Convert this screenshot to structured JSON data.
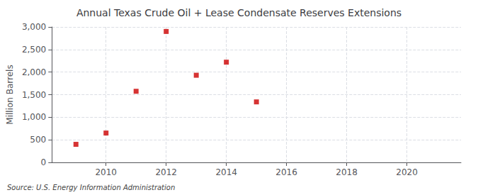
{
  "chart_data": {
    "type": "scatter",
    "title": "Annual Texas Crude Oil + Lease Condensate Reserves Extensions",
    "ylabel": "Million Barrels",
    "annotation": "Source: U.S. Energy Information Administration",
    "x": [
      2009,
      2010,
      2011,
      2012,
      2013,
      2014,
      2015
    ],
    "values": [
      400,
      650,
      1575,
      2900,
      1930,
      2220,
      1340
    ],
    "color": "#cc0000",
    "marker": "square",
    "xlim": [
      2008.2,
      2021.8
    ],
    "xticks": [
      2010,
      2012,
      2014,
      2016,
      2018,
      2020
    ],
    "ylim": [
      0,
      3000
    ],
    "yticks": [
      0,
      500,
      {
        "value": 1000,
        "label": "1,000"
      },
      {
        "value": 1500,
        "label": "1,500"
      },
      {
        "value": 2000,
        "label": "2,000"
      },
      {
        "value": 2500,
        "label": "2,500"
      },
      {
        "value": 3000,
        "label": "3,000"
      }
    ],
    "grid": true
  }
}
